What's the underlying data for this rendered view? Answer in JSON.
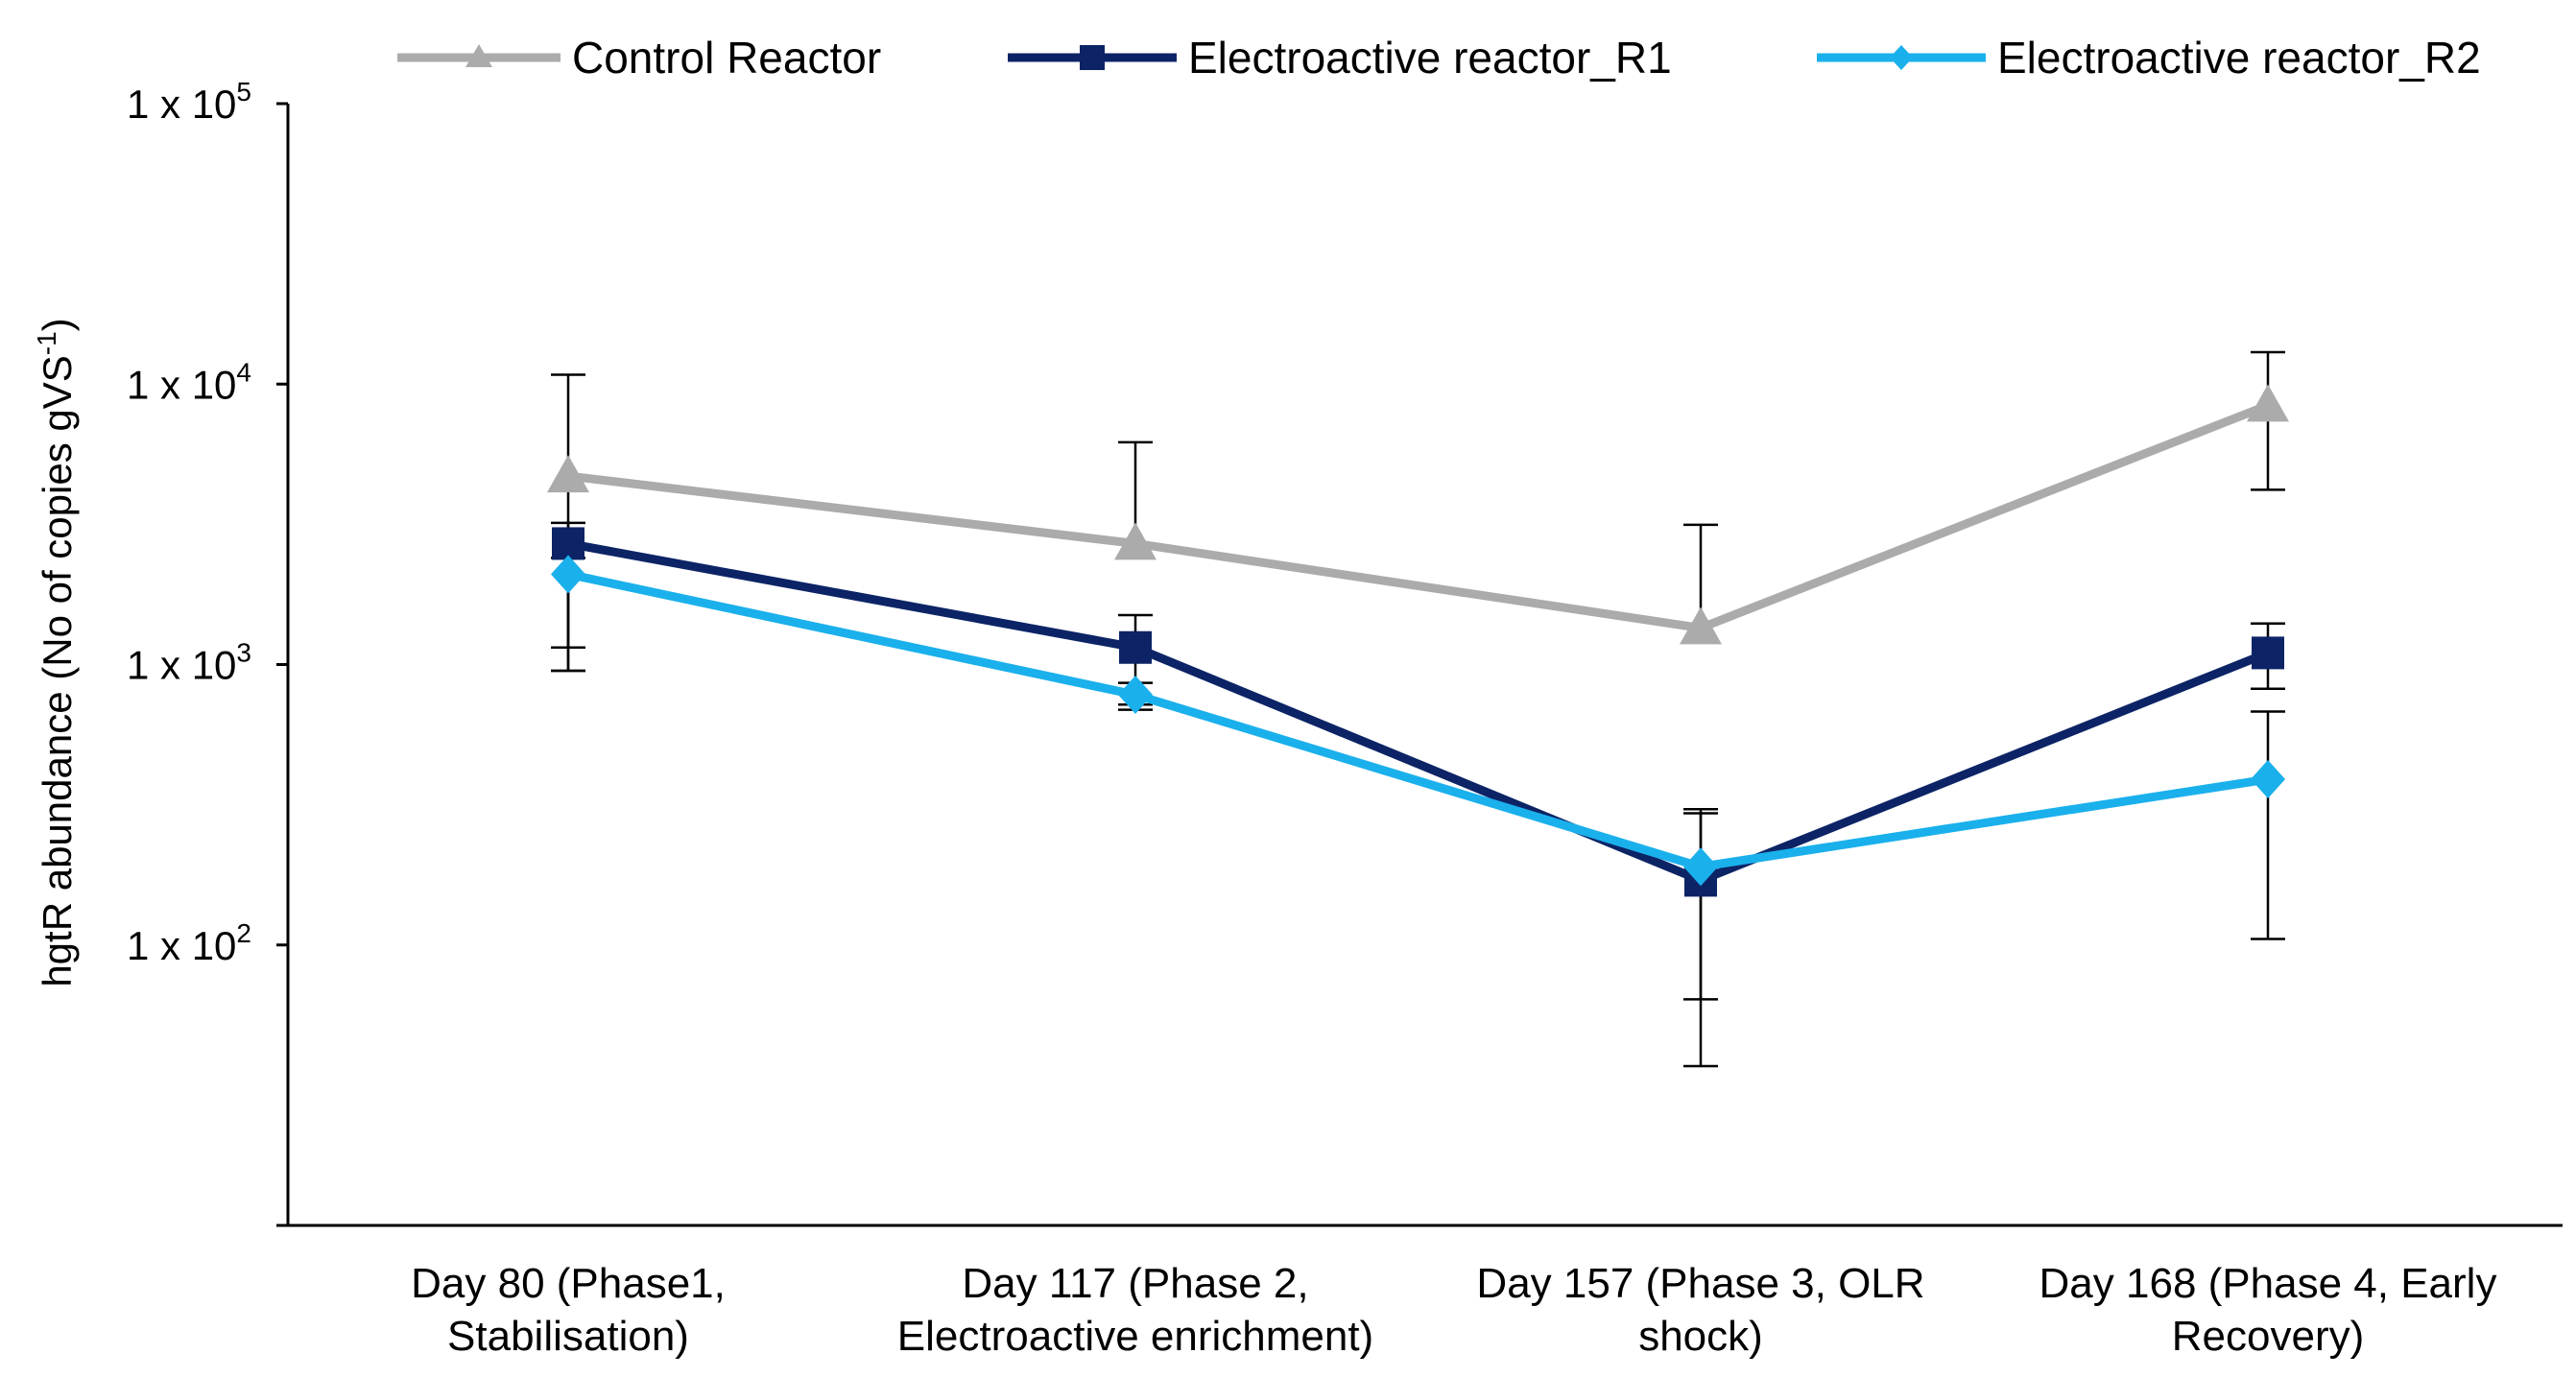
{
  "chart_data": {
    "type": "line",
    "categories": [
      [
        "Day 80 (Phase1,",
        "Stabilisation)"
      ],
      [
        "Day 117 (Phase 2,",
        "Electroactive enrichment)"
      ],
      [
        "Day 157 (Phase 3, OLR",
        "shock)"
      ],
      [
        "Day 168 (Phase 4, Early",
        "Recovery)"
      ]
    ],
    "ylabel": {
      "main": "hgtR abundance  (No of copies gVS",
      "sup": "-1",
      "tail": ")"
    },
    "yscale": "log",
    "ylim": [
      10,
      100000
    ],
    "yticks": [
      {
        "base": "1 x 10",
        "exp": "2",
        "value": 100
      },
      {
        "base": "1 x 10",
        "exp": "3",
        "value": 1000
      },
      {
        "base": "1 x 10",
        "exp": "4",
        "value": 10000
      },
      {
        "base": "1 x 10",
        "exp": "5",
        "value": 100000
      }
    ],
    "grid": false,
    "legend_position": "top",
    "series": [
      {
        "name": "Control Reactor",
        "color": "#ababab",
        "marker": "triangle",
        "values": [
          4700,
          2700,
          1350,
          8400
        ],
        "err_low": [
          1150,
          null,
          null,
          4200
        ],
        "err_high": [
          10800,
          6200,
          3150,
          13000
        ]
      },
      {
        "name": "Electroactive reactor_R1",
        "color": "#0c2466",
        "marker": "square",
        "values": [
          2700,
          1150,
          170,
          1100
        ],
        "err_low": [
          950,
          720,
          37,
          820
        ],
        "err_high": [
          3200,
          1500,
          305,
          1400
        ]
      },
      {
        "name": "Electroactive reactor_R2",
        "color": "#1ab0ec",
        "marker": "diamond",
        "values": [
          2100,
          780,
          190,
          390
        ],
        "err_low": [
          950,
          690,
          64,
          105
        ],
        "err_high": [
          2400,
          860,
          295,
          680
        ]
      }
    ]
  }
}
